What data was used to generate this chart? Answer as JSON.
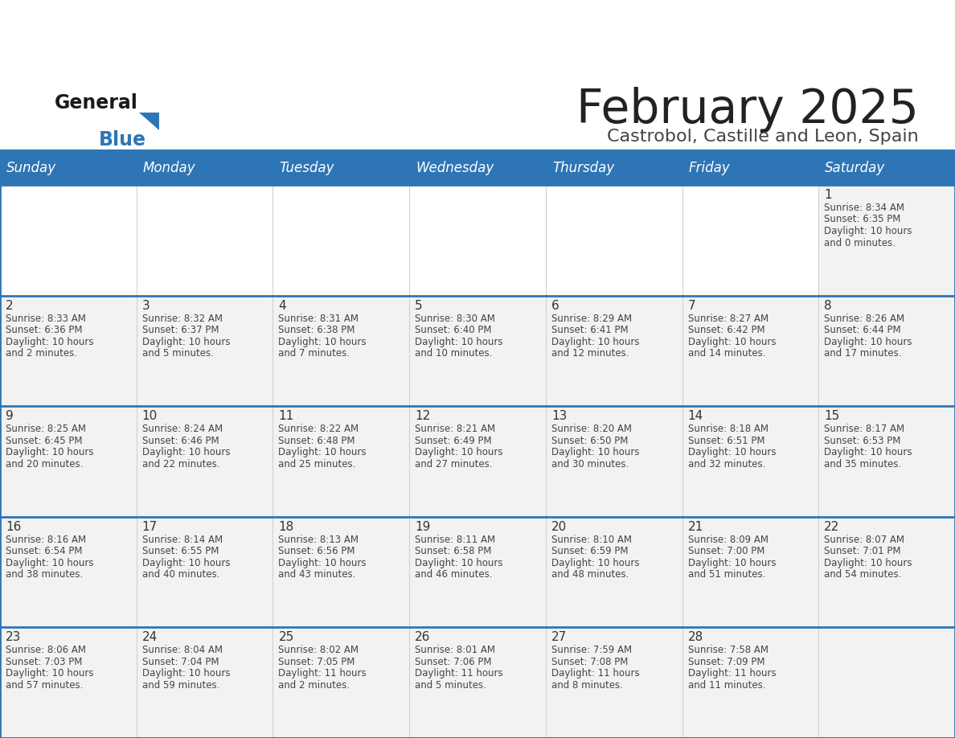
{
  "title": "February 2025",
  "subtitle": "Castrobol, Castille and Leon, Spain",
  "days_of_week": [
    "Sunday",
    "Monday",
    "Tuesday",
    "Wednesday",
    "Thursday",
    "Friday",
    "Saturday"
  ],
  "header_bg_color": "#2E75B6",
  "header_text_color": "#FFFFFF",
  "cell_bg_color": "#F2F2F2",
  "week1_bg_color": "#FFFFFF",
  "border_color": "#2E75B6",
  "day_num_color": "#333333",
  "cell_text_color": "#444444",
  "title_color": "#222222",
  "subtitle_color": "#444444",
  "logo_general_color": "#1a1a1a",
  "logo_blue_color": "#2E75B6",
  "weeks": [
    [
      {
        "day": null,
        "info": ""
      },
      {
        "day": null,
        "info": ""
      },
      {
        "day": null,
        "info": ""
      },
      {
        "day": null,
        "info": ""
      },
      {
        "day": null,
        "info": ""
      },
      {
        "day": null,
        "info": ""
      },
      {
        "day": 1,
        "info": "Sunrise: 8:34 AM\nSunset: 6:35 PM\nDaylight: 10 hours\nand 0 minutes."
      }
    ],
    [
      {
        "day": 2,
        "info": "Sunrise: 8:33 AM\nSunset: 6:36 PM\nDaylight: 10 hours\nand 2 minutes."
      },
      {
        "day": 3,
        "info": "Sunrise: 8:32 AM\nSunset: 6:37 PM\nDaylight: 10 hours\nand 5 minutes."
      },
      {
        "day": 4,
        "info": "Sunrise: 8:31 AM\nSunset: 6:38 PM\nDaylight: 10 hours\nand 7 minutes."
      },
      {
        "day": 5,
        "info": "Sunrise: 8:30 AM\nSunset: 6:40 PM\nDaylight: 10 hours\nand 10 minutes."
      },
      {
        "day": 6,
        "info": "Sunrise: 8:29 AM\nSunset: 6:41 PM\nDaylight: 10 hours\nand 12 minutes."
      },
      {
        "day": 7,
        "info": "Sunrise: 8:27 AM\nSunset: 6:42 PM\nDaylight: 10 hours\nand 14 minutes."
      },
      {
        "day": 8,
        "info": "Sunrise: 8:26 AM\nSunset: 6:44 PM\nDaylight: 10 hours\nand 17 minutes."
      }
    ],
    [
      {
        "day": 9,
        "info": "Sunrise: 8:25 AM\nSunset: 6:45 PM\nDaylight: 10 hours\nand 20 minutes."
      },
      {
        "day": 10,
        "info": "Sunrise: 8:24 AM\nSunset: 6:46 PM\nDaylight: 10 hours\nand 22 minutes."
      },
      {
        "day": 11,
        "info": "Sunrise: 8:22 AM\nSunset: 6:48 PM\nDaylight: 10 hours\nand 25 minutes."
      },
      {
        "day": 12,
        "info": "Sunrise: 8:21 AM\nSunset: 6:49 PM\nDaylight: 10 hours\nand 27 minutes."
      },
      {
        "day": 13,
        "info": "Sunrise: 8:20 AM\nSunset: 6:50 PM\nDaylight: 10 hours\nand 30 minutes."
      },
      {
        "day": 14,
        "info": "Sunrise: 8:18 AM\nSunset: 6:51 PM\nDaylight: 10 hours\nand 32 minutes."
      },
      {
        "day": 15,
        "info": "Sunrise: 8:17 AM\nSunset: 6:53 PM\nDaylight: 10 hours\nand 35 minutes."
      }
    ],
    [
      {
        "day": 16,
        "info": "Sunrise: 8:16 AM\nSunset: 6:54 PM\nDaylight: 10 hours\nand 38 minutes."
      },
      {
        "day": 17,
        "info": "Sunrise: 8:14 AM\nSunset: 6:55 PM\nDaylight: 10 hours\nand 40 minutes."
      },
      {
        "day": 18,
        "info": "Sunrise: 8:13 AM\nSunset: 6:56 PM\nDaylight: 10 hours\nand 43 minutes."
      },
      {
        "day": 19,
        "info": "Sunrise: 8:11 AM\nSunset: 6:58 PM\nDaylight: 10 hours\nand 46 minutes."
      },
      {
        "day": 20,
        "info": "Sunrise: 8:10 AM\nSunset: 6:59 PM\nDaylight: 10 hours\nand 48 minutes."
      },
      {
        "day": 21,
        "info": "Sunrise: 8:09 AM\nSunset: 7:00 PM\nDaylight: 10 hours\nand 51 minutes."
      },
      {
        "day": 22,
        "info": "Sunrise: 8:07 AM\nSunset: 7:01 PM\nDaylight: 10 hours\nand 54 minutes."
      }
    ],
    [
      {
        "day": 23,
        "info": "Sunrise: 8:06 AM\nSunset: 7:03 PM\nDaylight: 10 hours\nand 57 minutes."
      },
      {
        "day": 24,
        "info": "Sunrise: 8:04 AM\nSunset: 7:04 PM\nDaylight: 10 hours\nand 59 minutes."
      },
      {
        "day": 25,
        "info": "Sunrise: 8:02 AM\nSunset: 7:05 PM\nDaylight: 11 hours\nand 2 minutes."
      },
      {
        "day": 26,
        "info": "Sunrise: 8:01 AM\nSunset: 7:06 PM\nDaylight: 11 hours\nand 5 minutes."
      },
      {
        "day": 27,
        "info": "Sunrise: 7:59 AM\nSunset: 7:08 PM\nDaylight: 11 hours\nand 8 minutes."
      },
      {
        "day": 28,
        "info": "Sunrise: 7:58 AM\nSunset: 7:09 PM\nDaylight: 11 hours\nand 11 minutes."
      },
      {
        "day": null,
        "info": ""
      }
    ]
  ],
  "figsize": [
    11.88,
    9.18
  ],
  "dpi": 100
}
